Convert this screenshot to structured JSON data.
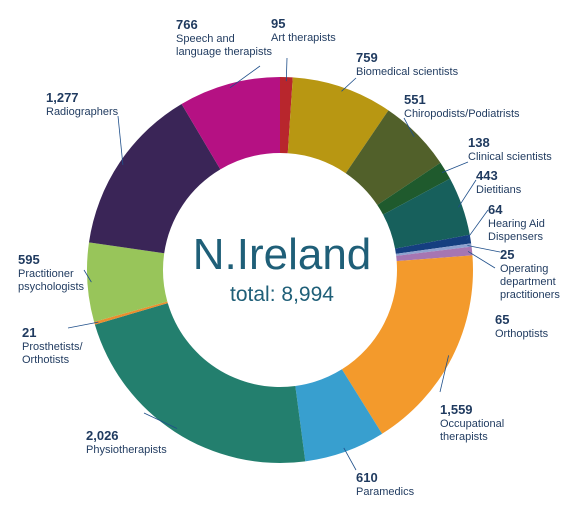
{
  "chart_data": {
    "type": "pie",
    "title": "N.Ireland",
    "subtitle": "total: 8,994",
    "slices": [
      {
        "label_lines": [
          "Art therapists"
        ],
        "value": 95,
        "value_text": "95",
        "color": "#b8262d"
      },
      {
        "label_lines": [
          "Biomedical scientists"
        ],
        "value": 759,
        "value_text": "759",
        "color": "#b89712"
      },
      {
        "label_lines": [
          "Chiropodists/Podiatrists"
        ],
        "value": 551,
        "value_text": "551",
        "color": "#51602a"
      },
      {
        "label_lines": [
          "Clinical scientists"
        ],
        "value": 138,
        "value_text": "138",
        "color": "#1f5a2d"
      },
      {
        "label_lines": [
          "Dietitians"
        ],
        "value": 443,
        "value_text": "443",
        "color": "#17605c"
      },
      {
        "label_lines": [
          "Hearing Aid",
          "Dispensers"
        ],
        "value": 64,
        "value_text": "64",
        "color": "#153f80"
      },
      {
        "label_lines": [
          "Operating",
          "department",
          "practitioners"
        ],
        "value": 25,
        "value_text": "25",
        "color": "#8ea2cf"
      },
      {
        "label_lines": [
          "Orthoptists"
        ],
        "value": 65,
        "value_text": "65",
        "color": "#a676b2"
      },
      {
        "label_lines": [
          "Occupational",
          "therapists"
        ],
        "value": 1559,
        "value_text": "1,559",
        "color": "#f39a2c"
      },
      {
        "label_lines": [
          "Paramedics"
        ],
        "value": 610,
        "value_text": "610",
        "color": "#389fcf"
      },
      {
        "label_lines": [
          "Physiotherapists"
        ],
        "value": 2026,
        "value_text": "2,026",
        "color": "#237f6e"
      },
      {
        "label_lines": [
          "Prosthetists/",
          "Orthotists"
        ],
        "value": 21,
        "value_text": "21",
        "color": "#ea8e2e"
      },
      {
        "label_lines": [
          "Practitioner",
          "psychologists"
        ],
        "value": 595,
        "value_text": "595",
        "color": "#98c55a"
      },
      {
        "label_lines": [
          "Radiographers"
        ],
        "value": 1277,
        "value_text": "1,277",
        "color": "#3a2557"
      },
      {
        "label_lines": [
          "Speech and",
          "language therapists"
        ],
        "value": 766,
        "value_text": "766",
        "color": "#b51183"
      }
    ]
  }
}
